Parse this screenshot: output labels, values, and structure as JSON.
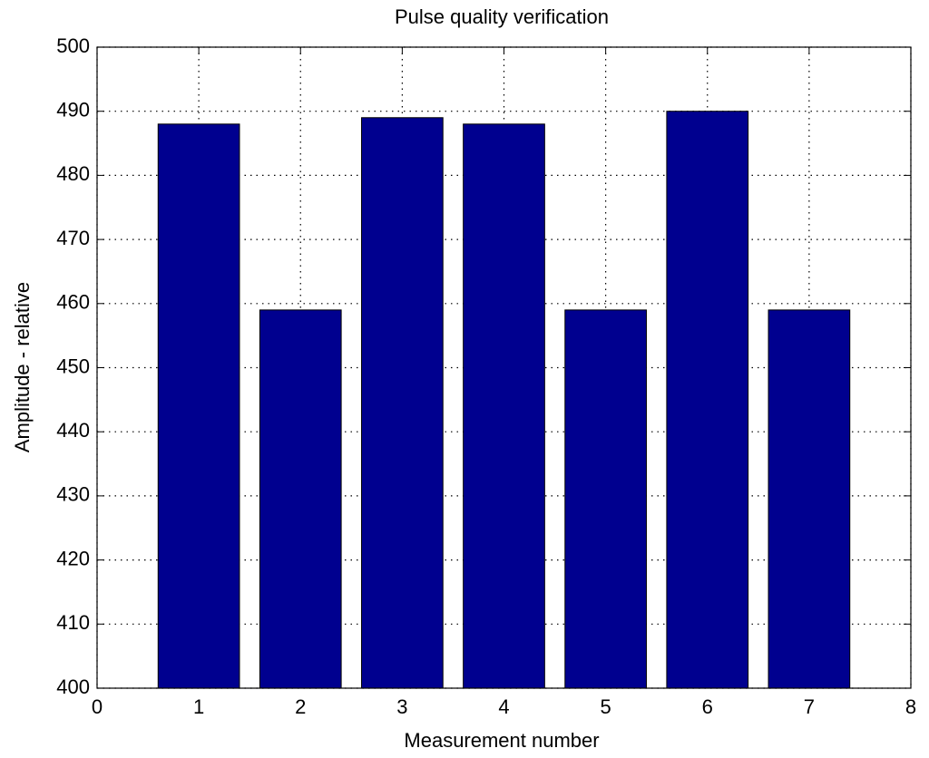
{
  "chart_data": {
    "type": "bar",
    "title": "Pulse quality verification",
    "x_label": "Measurement number",
    "y_label": "Amplitude - relative",
    "x": [
      1,
      2,
      3,
      4,
      5,
      6,
      7
    ],
    "values": [
      488,
      459,
      489,
      488,
      459,
      490,
      459
    ],
    "color": "#00008f",
    "xlim": [
      0,
      8
    ],
    "xticks": [
      0,
      1,
      2,
      3,
      4,
      5,
      6,
      7,
      8
    ],
    "ylim": [
      400,
      500
    ],
    "yticks": [
      400,
      410,
      420,
      430,
      440,
      450,
      460,
      470,
      480,
      490,
      500
    ],
    "grid": true
  }
}
